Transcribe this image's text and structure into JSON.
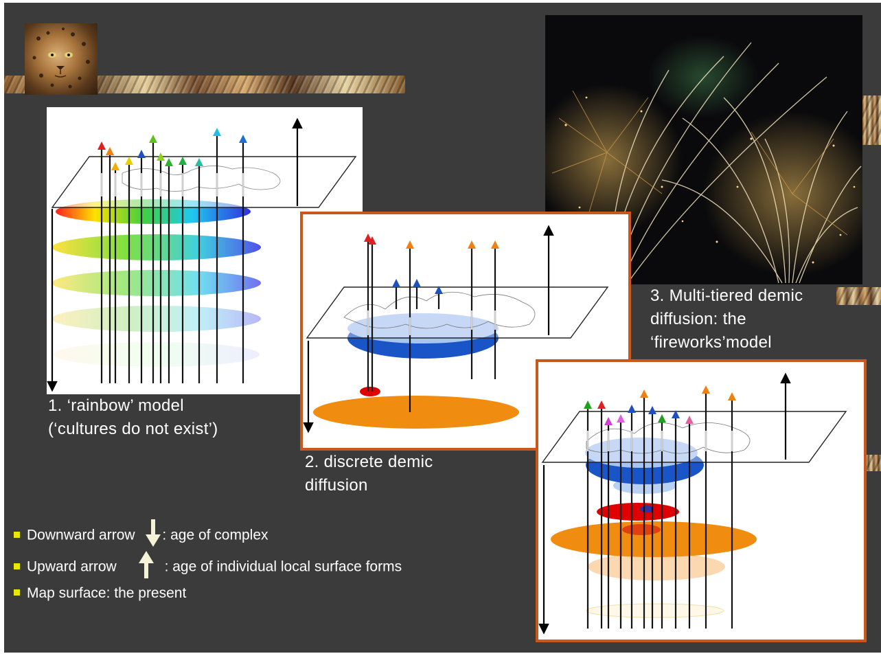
{
  "captions": {
    "rainbow": [
      "1. ‘rainbow’ model",
      "(‘cultures do not exist’)"
    ],
    "discrete": [
      "2. discrete demic",
      "diffusion"
    ],
    "fireworks": [
      "3. Multi-tiered demic",
      "diffusion: the",
      "‘fireworks’model"
    ]
  },
  "legend": {
    "down": {
      "bold": "Downward",
      "rest": " arrow",
      "after": ": age of complex"
    },
    "up": {
      "bold": "Upward",
      "rest": " arrow",
      "after": ": age of individual local surface forms"
    },
    "map": {
      "bold": "Map surface",
      "rest": ": the present"
    }
  },
  "colors": {
    "background": "#3b3b3b",
    "panel_border": "#c8581c",
    "bullet": "#e8e800",
    "legend_arrow": "#f5f2d8"
  },
  "icons": {
    "leopard": "leopard-photo",
    "fireworks": "fireworks-photo"
  }
}
